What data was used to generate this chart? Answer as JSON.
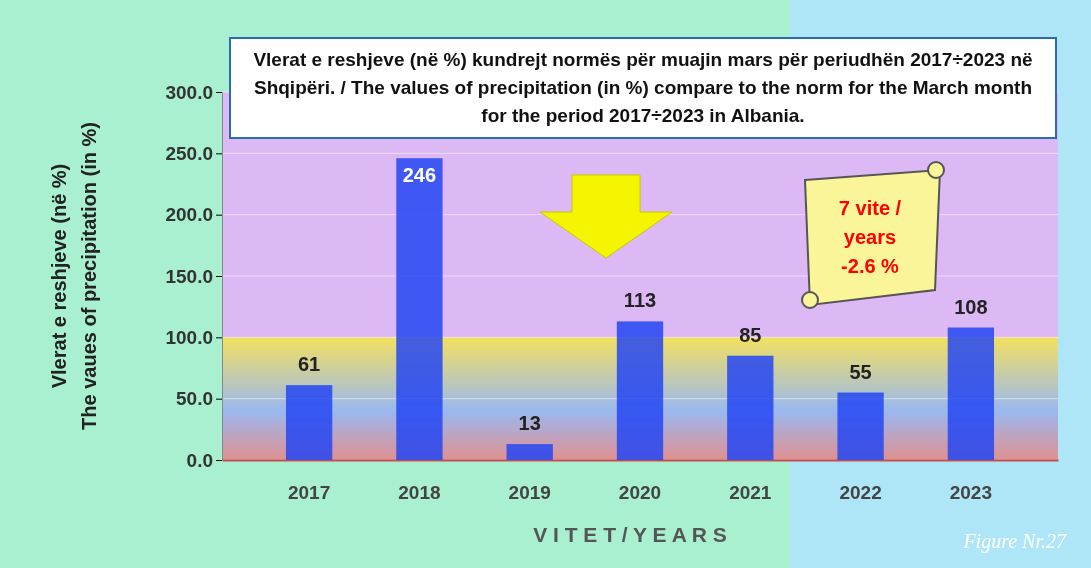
{
  "chart_data": {
    "type": "bar",
    "title": "Vlerat e reshjeve (në %) kundrejt normës për muajin mars për periudhën 2017÷2023 në Shqipëri. / The values of precipitation (in %) compare to the norm for the March month for the period 2017÷2023 in Albania.",
    "xlabel": "V I T E T / Y E A R S",
    "ylabel": "Vlerat e reshjeve (në %)\nThe vaues of precipitation (in %)",
    "categories": [
      "2017",
      "2018",
      "2019",
      "2020",
      "2021",
      "2022",
      "2023"
    ],
    "values": [
      61,
      246,
      13,
      113,
      85,
      55,
      108
    ],
    "color": "#2447f2",
    "ylim": [
      0,
      300
    ],
    "yticks": [
      {
        "value": 0,
        "label": "0.0"
      },
      {
        "value": 50,
        "label": "50.0"
      },
      {
        "value": 100,
        "label": "100.0"
      },
      {
        "value": 150,
        "label": "150.0"
      },
      {
        "value": 200,
        "label": "200.0"
      },
      {
        "value": 250,
        "label": "250.0"
      },
      {
        "value": 300,
        "label": "300.0"
      }
    ],
    "grid": "y",
    "data_labels": true,
    "bands": [
      {
        "axis": "y",
        "from": 0,
        "to": 100,
        "color": "#f3e060"
      }
    ],
    "annotations": [
      "7 vite / years -2.6 %",
      "Figure Nr.27"
    ]
  }
}
